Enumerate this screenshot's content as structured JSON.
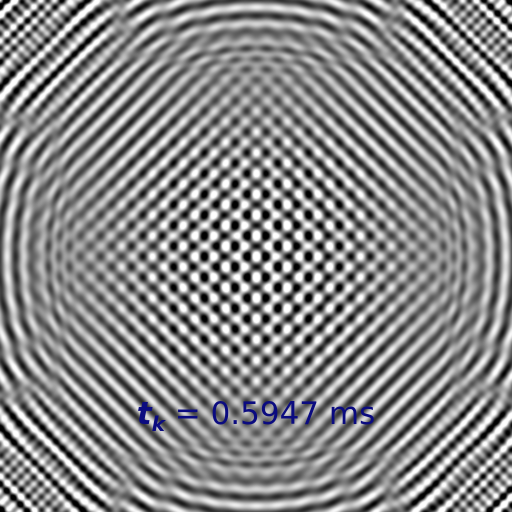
{
  "caption": {
    "symbol": "t",
    "subscript": "k",
    "equals": " = ",
    "value": "0.5947",
    "unit": " ms"
  },
  "colors": {
    "caption": "#0b0b80",
    "background_gray": "#888888"
  }
}
